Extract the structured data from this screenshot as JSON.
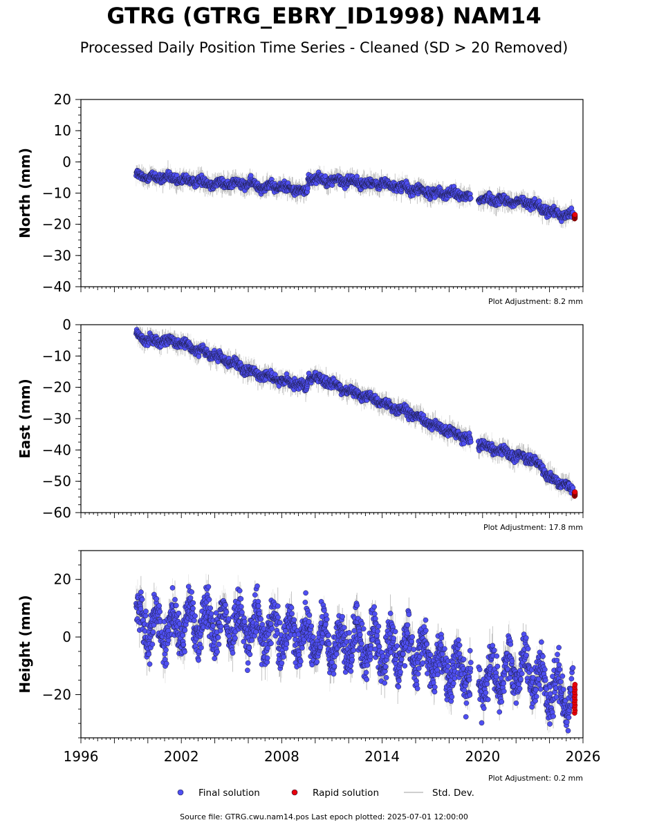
{
  "header": {
    "title": "GTRG (GTRG_EBRY_ID1998) NAM14",
    "subtitle": "Processed Daily Position Time Series - Cleaned (SD > 20 Removed)"
  },
  "footer": {
    "source": "Source file: GTRG.cwu.nam14.pos  Last epoch plotted: 2025-07-01 12:00:00"
  },
  "legend": {
    "final_label": "Final solution",
    "rapid_label": "Rapid solution",
    "stddev_label": "Std. Dev."
  },
  "colors": {
    "final": "#4f4ff2",
    "rapid": "#e8000b",
    "stddev": "#9e9e9e",
    "marker_edge": "#1a1a40"
  },
  "chart_data": [
    {
      "type": "scatter",
      "ylabel": "North (mm)",
      "xlim": [
        1996,
        2026
      ],
      "ylim": [
        -40,
        20
      ],
      "yticks": [
        -40,
        -30,
        -20,
        -10,
        0,
        10,
        20
      ],
      "annotation": "Plot Adjustment: 8.2 mm",
      "legend": "none",
      "grid": false,
      "series": [
        {
          "name": "Final solution",
          "x": [
            1999.3,
            2000.0,
            2001.0,
            2002.0,
            2003.0,
            2004.0,
            2005.0,
            2006.0,
            2007.0,
            2008.0,
            2009.0,
            2009.5,
            2009.6,
            2011.0,
            2012.0,
            2013.0,
            2014.0,
            2015.0,
            2016.0,
            2017.0,
            2018.0,
            2019.0,
            2019.8,
            2021.0,
            2022.0,
            2023.0,
            2023.5,
            2024.0,
            2025.0,
            2025.4
          ],
          "y": [
            -4,
            -5,
            -5,
            -6,
            -6,
            -7,
            -7,
            -7,
            -8,
            -8,
            -9,
            -10,
            -5,
            -6,
            -6,
            -7,
            -7,
            -8,
            -9,
            -10,
            -10,
            -11,
            -12,
            -12,
            -13,
            -13,
            -15,
            -16,
            -17,
            -17
          ]
        },
        {
          "name": "Rapid solution",
          "x": [
            2025.5
          ],
          "y": [
            -17.5
          ]
        }
      ],
      "stddev_typical": 2.5
    },
    {
      "type": "scatter",
      "ylabel": "East (mm)",
      "xlim": [
        1996,
        2026
      ],
      "ylim": [
        -60,
        0
      ],
      "yticks": [
        -60,
        -50,
        -40,
        -30,
        -20,
        -10,
        0
      ],
      "annotation": "Plot Adjustment: 17.8 mm",
      "legend": "none",
      "grid": false,
      "series": [
        {
          "name": "Final solution",
          "x": [
            1999.3,
            2000.0,
            2001.0,
            2002.0,
            2003.0,
            2004.0,
            2005.0,
            2006.0,
            2007.0,
            2008.0,
            2009.0,
            2009.5,
            2009.6,
            2011.0,
            2012.0,
            2013.0,
            2014.0,
            2015.0,
            2016.0,
            2017.0,
            2018.0,
            2019.0,
            2019.8,
            2021.0,
            2022.0,
            2023.0,
            2023.5,
            2024.0,
            2025.0,
            2025.4
          ],
          "y": [
            -3,
            -5,
            -5,
            -6,
            -8,
            -10,
            -12,
            -15,
            -16,
            -18,
            -19,
            -20,
            -16,
            -19,
            -21,
            -23,
            -25,
            -27,
            -29,
            -32,
            -34,
            -36,
            -38,
            -40,
            -42,
            -43,
            -45,
            -49,
            -51,
            -53
          ]
        },
        {
          "name": "Rapid solution",
          "x": [
            2025.5
          ],
          "y": [
            -54
          ]
        }
      ],
      "stddev_typical": 2.5
    },
    {
      "type": "scatter",
      "ylabel": "Height (mm)",
      "xlim": [
        1996,
        2026
      ],
      "ylim": [
        -35,
        30
      ],
      "yticks": [
        -20,
        0,
        20
      ],
      "xticks": [
        1996,
        2002,
        2008,
        2014,
        2020,
        2026
      ],
      "annotation": "Plot Adjustment: 0.2 mm",
      "legend": "bottom-center",
      "grid": false,
      "series": [
        {
          "name": "Final solution",
          "x": [
            1999.3,
            2000.0,
            2001.0,
            2002.0,
            2003.0,
            2004.0,
            2005.0,
            2006.0,
            2007.0,
            2008.0,
            2009.0,
            2010.0,
            2011.0,
            2012.0,
            2013.0,
            2014.0,
            2015.0,
            2016.0,
            2017.0,
            2018.0,
            2019.0,
            2019.8,
            2021.0,
            2022.0,
            2023.0,
            2024.0,
            2025.0,
            2025.4
          ],
          "y": [
            5,
            3,
            2,
            4,
            6,
            5,
            5,
            4,
            3,
            2,
            0,
            -1,
            -2,
            -2,
            -3,
            -4,
            -4,
            -5,
            -8,
            -11,
            -12,
            -14,
            -13,
            -12,
            -13,
            -18,
            -20,
            -20
          ]
        },
        {
          "name": "Rapid solution",
          "x": [
            2025.5
          ],
          "y": [
            -21
          ]
        }
      ],
      "stddev_typical": 4.5,
      "spread": 9
    }
  ]
}
